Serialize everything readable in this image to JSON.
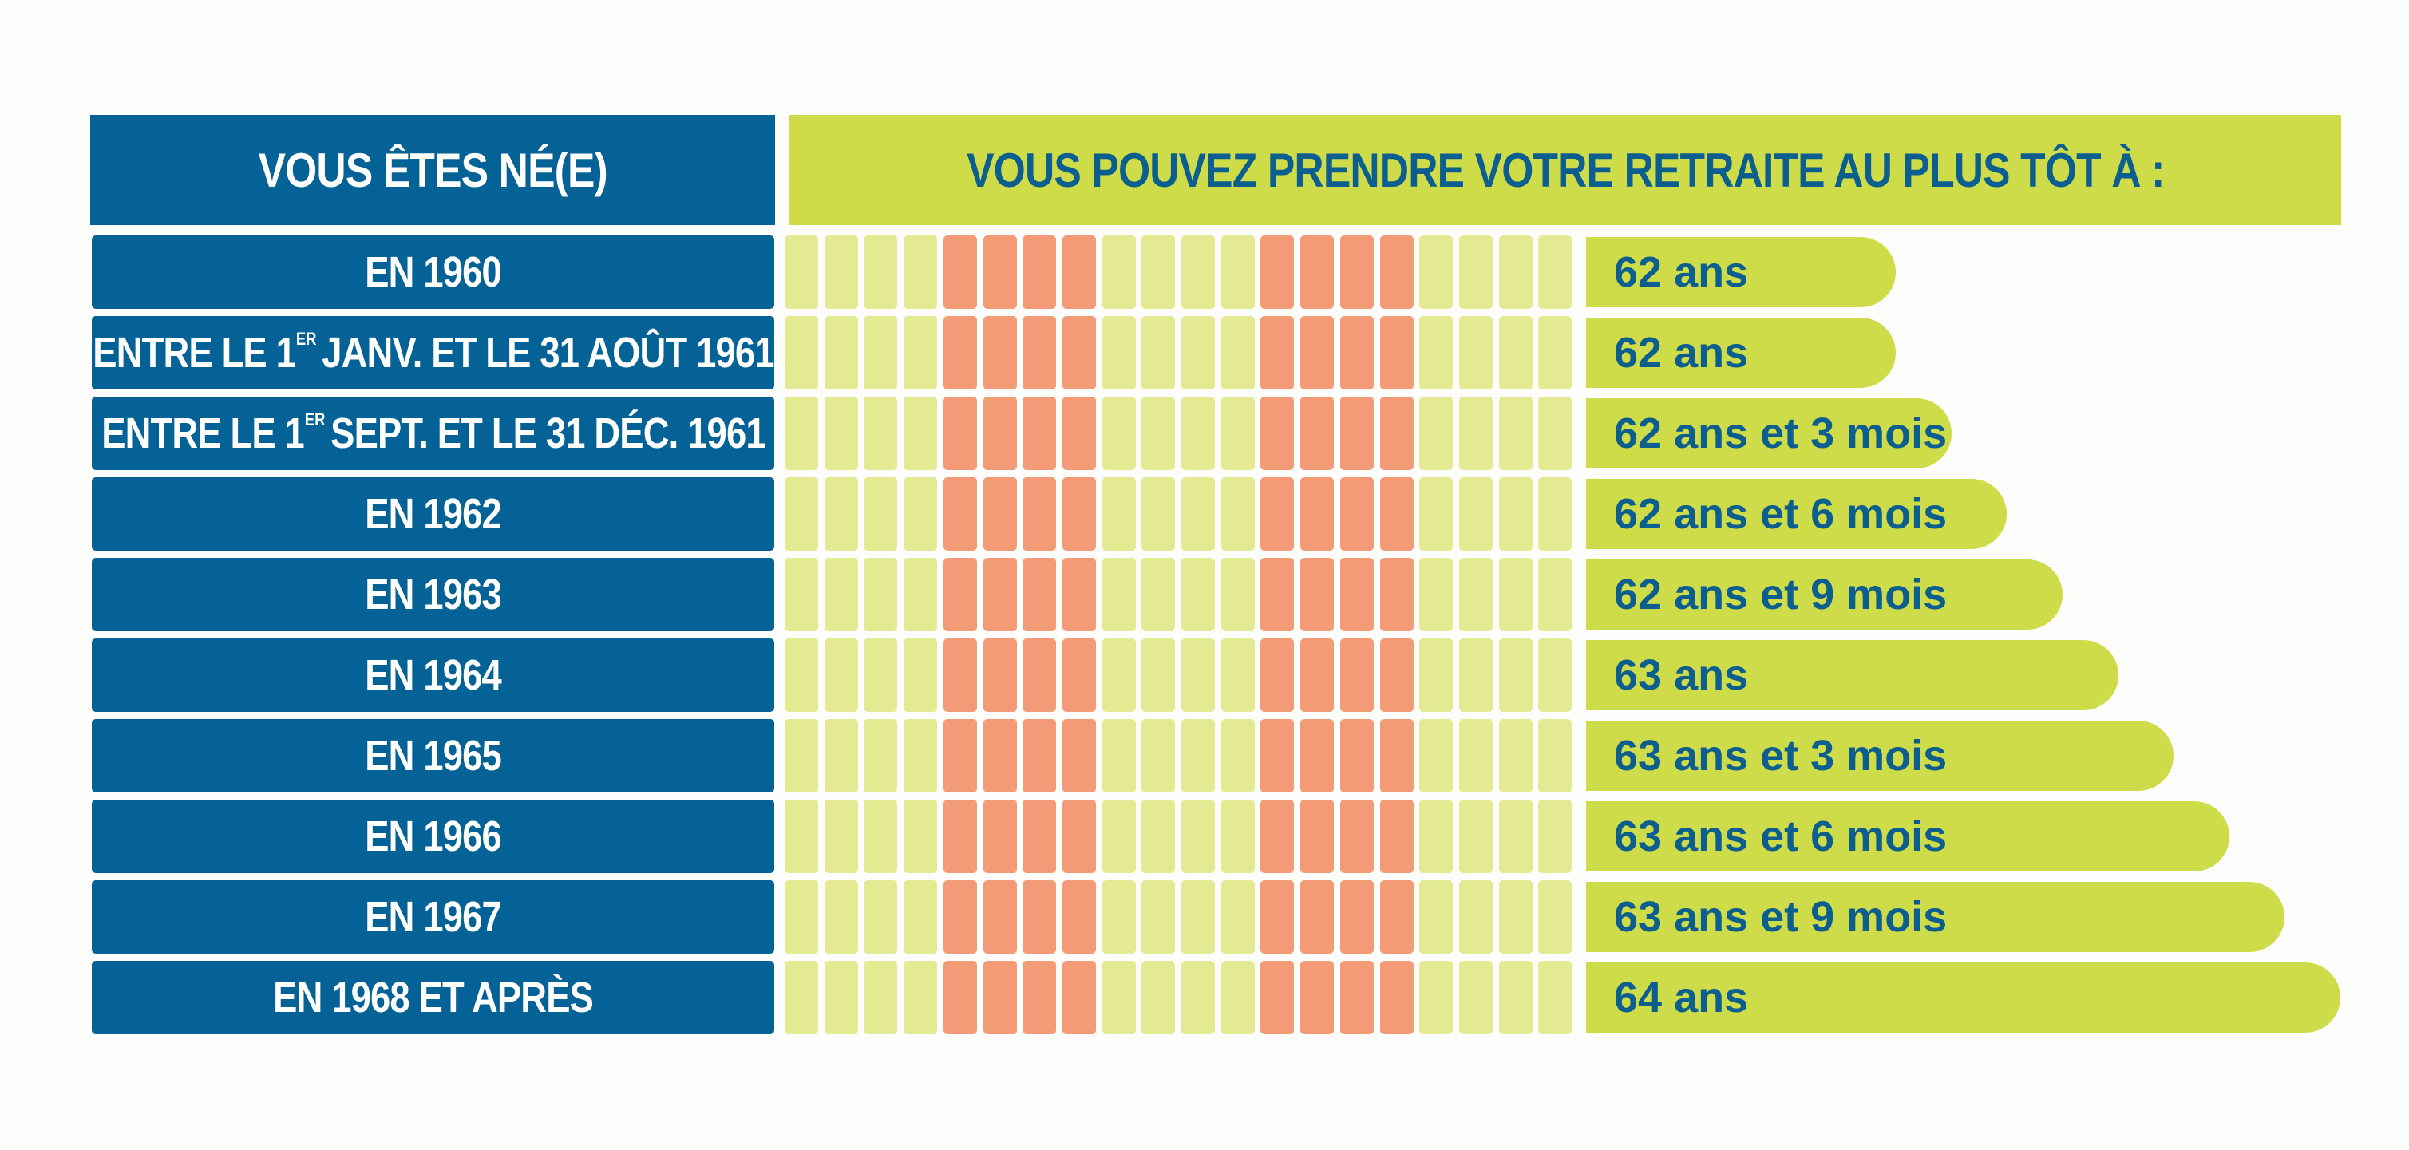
{
  "chart_data": {
    "type": "table",
    "header": {
      "left": "VOUS ÊTES NÉ(E)",
      "right": "VOUS POUVEZ PRENDRE VOTRE RETRAITE AU PLUS TÔT À :"
    },
    "rows": [
      {
        "pre": "EN 1960",
        "sup": "",
        "post": "",
        "age": "62 ans",
        "value": 62.0
      },
      {
        "pre": "ENTRE LE 1",
        "sup": "ER",
        "post": "JANV. ET LE 31 AOÛT 1961",
        "age": "62 ans",
        "value": 62.0
      },
      {
        "pre": "ENTRE LE 1",
        "sup": "ER",
        "post": "SEPT. ET LE 31 DÉC. 1961",
        "age": "62 ans et 3 mois",
        "value": 62.25
      },
      {
        "pre": "EN 1962",
        "sup": "",
        "post": "",
        "age": "62 ans et 6 mois",
        "value": 62.5
      },
      {
        "pre": "EN 1963",
        "sup": "",
        "post": "",
        "age": "62 ans et 9 mois",
        "value": 62.75
      },
      {
        "pre": "EN 1964",
        "sup": "",
        "post": "",
        "age": "63 ans",
        "value": 63.0
      },
      {
        "pre": "EN 1965",
        "sup": "",
        "post": "",
        "age": "63 ans et 3 mois",
        "value": 63.25
      },
      {
        "pre": "EN 1966",
        "sup": "",
        "post": "",
        "age": "63 ans et 6 mois",
        "value": 63.5
      },
      {
        "pre": "EN 1967",
        "sup": "",
        "post": "",
        "age": "63 ans et 9 mois",
        "value": 63.75
      },
      {
        "pre": "EN 1968 ET APRÈS",
        "sup": "",
        "post": "",
        "age": "64 ans",
        "value": 64.0
      }
    ],
    "value_range": [
      62,
      64
    ],
    "colors": {
      "label_bg": "#046296",
      "bar": "#cfdc4a",
      "text_accent": "#0b5e8e",
      "cell_light": "#e3ea92",
      "cell_orange": "#f29b76"
    },
    "cell_pattern": [
      "y",
      "y",
      "y",
      "y",
      "o",
      "o",
      "o",
      "o",
      "y",
      "y",
      "y",
      "y",
      "o",
      "o",
      "o",
      "o",
      "y",
      "y",
      "y",
      "y"
    ]
  }
}
